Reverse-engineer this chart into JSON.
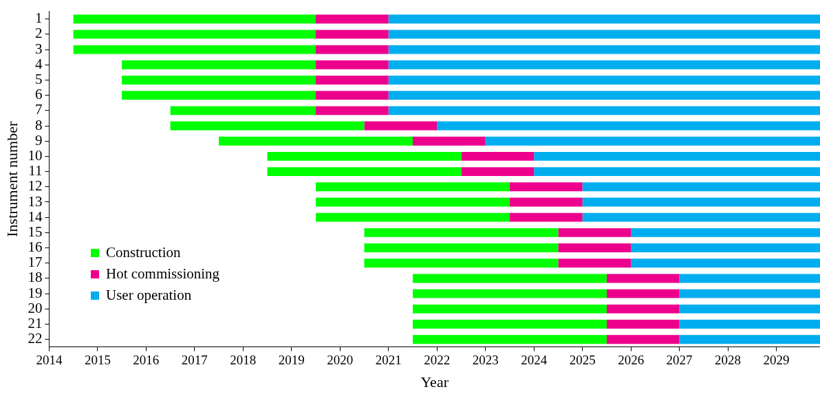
{
  "chart_data": {
    "type": "bar",
    "orientation": "horizontal",
    "xlabel": "Year",
    "ylabel": "Instrument number",
    "legend": "bottom left",
    "grid": false,
    "categories": [
      "1",
      "2",
      "3",
      "4",
      "5",
      "6",
      "7",
      "8",
      "9",
      "10",
      "11",
      "12",
      "13",
      "14",
      "15",
      "16",
      "17",
      "18",
      "19",
      "20",
      "21",
      "22"
    ],
    "series": [
      {
        "name": "Construction",
        "color": "#00ff00",
        "base": [
          2014.5,
          2014.5,
          2014.5,
          2015.5,
          2015.5,
          2015.5,
          2016.5,
          2016.5,
          2017.5,
          2018.5,
          2018.5,
          2019.5,
          2019.5,
          2019.5,
          2020.5,
          2020.5,
          2020.5,
          2021.5,
          2021.5,
          2021.5,
          2021.5,
          2021.5
        ],
        "values": [
          5,
          5,
          5,
          4,
          4,
          4,
          3,
          4,
          4,
          4,
          4,
          4,
          4,
          4,
          4,
          4,
          4,
          4,
          4,
          4,
          4,
          4
        ]
      },
      {
        "name": "Hot commissioning",
        "color": "#ec008c",
        "base": [
          2019.5,
          2019.5,
          2019.5,
          2019.5,
          2019.5,
          2019.5,
          2019.5,
          2020.5,
          2021.5,
          2022.5,
          2022.5,
          2023.5,
          2023.5,
          2023.5,
          2024.5,
          2024.5,
          2024.5,
          2025.5,
          2025.5,
          2025.5,
          2025.5,
          2025.5
        ],
        "values": [
          1.5,
          1.5,
          1.5,
          1.5,
          1.5,
          1.5,
          1.5,
          1.5,
          1.5,
          1.5,
          1.5,
          1.5,
          1.5,
          1.5,
          1.5,
          1.5,
          1.5,
          1.5,
          1.5,
          1.5,
          1.5,
          1.5
        ]
      },
      {
        "name": "User operation",
        "color": "#00aeef",
        "base": [
          2021,
          2021,
          2021,
          2021,
          2021,
          2021,
          2021,
          2022,
          2023,
          2024,
          2024,
          2025,
          2025,
          2025,
          2026,
          2026,
          2026,
          2027,
          2027,
          2027,
          2027,
          2027
        ],
        "values": [
          8.9,
          8.9,
          8.9,
          8.9,
          8.9,
          8.9,
          8.9,
          7.9,
          6.9,
          5.9,
          5.9,
          4.9,
          4.9,
          4.9,
          3.9,
          3.9,
          3.9,
          2.9,
          2.9,
          2.9,
          2.9,
          2.9
        ]
      }
    ],
    "xlim": [
      2014,
      2029.9
    ],
    "xticks": [
      2014,
      2015,
      2016,
      2017,
      2018,
      2019,
      2020,
      2021,
      2022,
      2023,
      2024,
      2025,
      2026,
      2027,
      2028,
      2029
    ]
  }
}
